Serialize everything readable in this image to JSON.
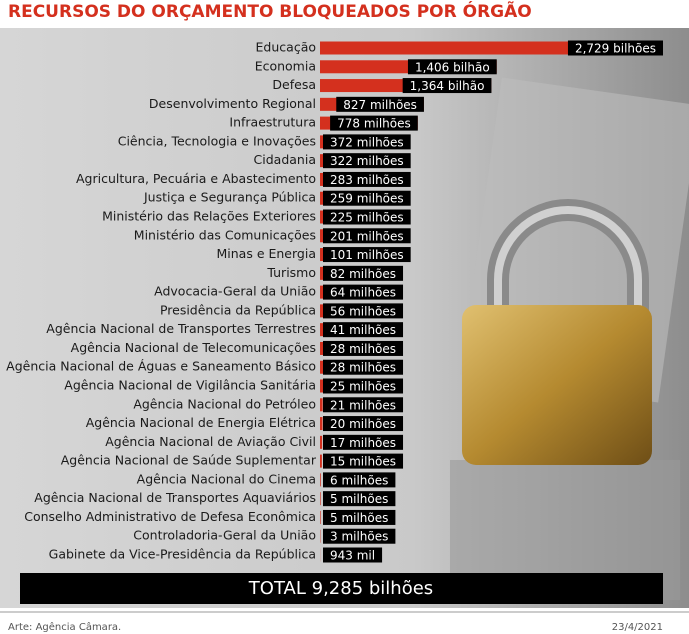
{
  "chart_data": {
    "type": "bar",
    "orientation": "horizontal",
    "title": "RECURSOS DO ORÇAMENTO BLOQUEADOS POR ÓRGÃO",
    "categories": [
      "Educação",
      "Economia",
      "Defesa",
      "Desenvolvimento Regional",
      "Infraestrutura",
      "Ciência, Tecnologia e Inovações",
      "Cidadania",
      "Agricultura, Pecuária e Abastecimento",
      "Justiça e Segurança Pública",
      "Ministério das Relações Exteriores",
      "Ministério das Comunicações",
      "Minas e Energia",
      "Turismo",
      "Advocacia-Geral da União",
      "Presidência da República",
      "Agência Nacional de Transportes Terrestres",
      "Agência Nacional de Telecomunicações",
      "Agência Nacional de Águas e Saneamento Básico",
      "Agência Nacional de Vigilância Sanitária",
      "Agência Nacional do Petróleo",
      "Agência Nacional de Energia Elétrica",
      "Agência Nacional de Aviação Civil",
      "Agência Nacional de Saúde Suplementar",
      "Agência Nacional do Cinema",
      "Agência Nacional de Transportes Aquaviários",
      "Conselho Administrativo de Defesa Econômica",
      "Controladoria-Geral da União",
      "Gabinete da Vice-Presidência da República"
    ],
    "values": [
      2729,
      1406,
      1364,
      827,
      778,
      372,
      322,
      283,
      259,
      225,
      201,
      101,
      82,
      64,
      56,
      41,
      28,
      28,
      25,
      21,
      20,
      17,
      15,
      6,
      5,
      5,
      3,
      0.943
    ],
    "value_labels": [
      "2,729 bilhões",
      "1,406 bilhão",
      "1,364 bilhão",
      "827 milhões",
      "778 milhões",
      "372 milhões",
      "322 milhões",
      "283 milhões",
      "259 milhões",
      "225 milhões",
      "201 milhões",
      "101 milhões",
      "82 milhões",
      "64 milhões",
      "56 milhões",
      "41 milhões",
      "28 milhões",
      "28 milhões",
      "25 milhões",
      "21 milhões",
      "20 milhões",
      "17 milhões",
      "15 milhões",
      "6 milhões",
      "5 milhões",
      "5 milhões",
      "3 milhões",
      "943 mil"
    ],
    "color": "#d4301e",
    "total": "TOTAL 9,285 bilhões",
    "source": "Arte: Agência Câmara.",
    "date": "23/4/2021"
  }
}
